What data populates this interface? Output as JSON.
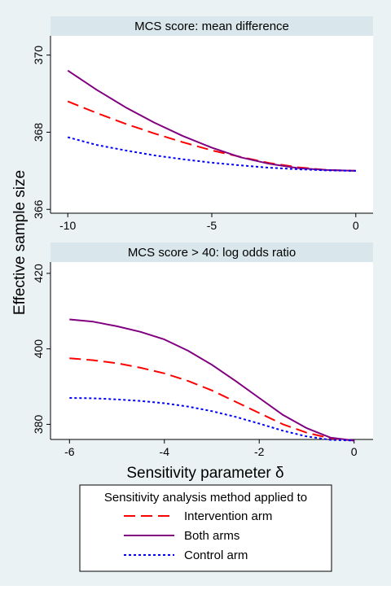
{
  "ylabel": "Effective sample size",
  "xlabel": "Sensitivity parameter δ",
  "chart_data": [
    {
      "type": "line",
      "title": "MCS score: mean difference",
      "xlim": [
        -10.6,
        0.6
      ],
      "ylim": [
        365.9,
        370.5
      ],
      "xticks": [
        -10,
        -5,
        0
      ],
      "yticks": [
        366,
        368,
        370
      ],
      "grid": false,
      "series": [
        {
          "name": "Intervention arm",
          "color": "#ff0000",
          "dash": "long-dash",
          "x": [
            -10,
            -9,
            -8,
            -7,
            -6,
            -5,
            -4,
            -3,
            -2,
            -1,
            0
          ],
          "y": [
            368.8,
            368.5,
            368.22,
            367.97,
            367.74,
            367.53,
            367.36,
            367.2,
            367.09,
            367.02,
            367.0
          ]
        },
        {
          "name": "Both arms",
          "color": "#800080",
          "dash": "solid",
          "x": [
            -10,
            -9,
            -8,
            -7,
            -6,
            -5,
            -4,
            -3,
            -2,
            -1,
            0
          ],
          "y": [
            369.6,
            369.1,
            368.65,
            368.25,
            367.9,
            367.6,
            367.35,
            367.18,
            367.07,
            367.02,
            367.0
          ]
        },
        {
          "name": "Control arm",
          "color": "#0000ff",
          "dash": "short-dash",
          "x": [
            -10,
            -9,
            -8,
            -7,
            -6,
            -5,
            -4,
            -3,
            -2,
            -1,
            0
          ],
          "y": [
            367.87,
            367.67,
            367.53,
            367.4,
            367.3,
            367.21,
            367.14,
            367.08,
            367.04,
            367.01,
            367.0
          ]
        }
      ]
    },
    {
      "type": "line",
      "title": "MCS score > 40: log odds ratio",
      "xlim": [
        -6.4,
        0.4
      ],
      "ylim": [
        376,
        423
      ],
      "xticks": [
        -6,
        -4,
        -2,
        0
      ],
      "yticks": [
        380,
        400,
        420
      ],
      "grid": false,
      "series": [
        {
          "name": "Intervention arm",
          "color": "#ff0000",
          "dash": "long-dash",
          "x": [
            -6,
            -5.5,
            -5,
            -4.5,
            -4,
            -3.5,
            -3,
            -2.5,
            -2,
            -1.5,
            -1,
            -0.5,
            0
          ],
          "y": [
            397.5,
            397.0,
            396.2,
            395.0,
            393.5,
            391.5,
            389.0,
            386.0,
            383.0,
            380.0,
            377.8,
            376.3,
            375.7
          ]
        },
        {
          "name": "Both arms",
          "color": "#800080",
          "dash": "solid",
          "x": [
            -6,
            -5.5,
            -5,
            -4.5,
            -4,
            -3.5,
            -3,
            -2.5,
            -2,
            -1.5,
            -1,
            -0.5,
            0
          ],
          "y": [
            407.8,
            407.2,
            406.0,
            404.5,
            402.5,
            399.5,
            395.8,
            391.5,
            387.0,
            382.5,
            379.0,
            376.5,
            375.7
          ]
        },
        {
          "name": "Control arm",
          "color": "#0000ff",
          "dash": "short-dash",
          "x": [
            -6,
            -5.5,
            -5,
            -4.5,
            -4,
            -3.5,
            -3,
            -2.5,
            -2,
            -1.5,
            -1,
            -0.5,
            0
          ],
          "y": [
            387.0,
            386.9,
            386.6,
            386.2,
            385.6,
            384.7,
            383.5,
            382.0,
            380.2,
            378.3,
            376.8,
            375.9,
            375.7
          ]
        }
      ]
    }
  ],
  "legend": {
    "title": "Sensitivity analysis method applied to",
    "placement": "bottom",
    "items": [
      {
        "label": "Intervention arm",
        "color": "#ff0000",
        "dash": "long-dash"
      },
      {
        "label": "Both arms",
        "color": "#800080",
        "dash": "solid"
      },
      {
        "label": "Control arm",
        "color": "#0000ff",
        "dash": "short-dash"
      }
    ]
  }
}
